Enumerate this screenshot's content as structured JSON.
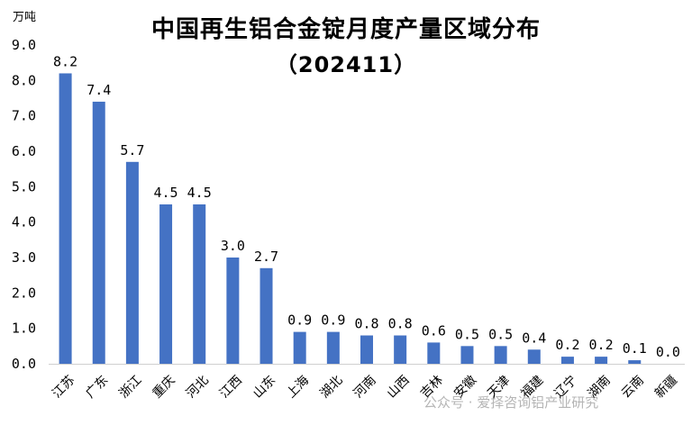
{
  "chart_data": {
    "type": "bar",
    "title": "中国再生铝合金锭月度产量区域分布",
    "subtitle": "（202411）",
    "ylabel": "万吨",
    "ylim": [
      0,
      9
    ],
    "yticks": [
      "0.0",
      "1.0",
      "2.0",
      "3.0",
      "4.0",
      "5.0",
      "6.0",
      "7.0",
      "8.0",
      "9.0"
    ],
    "grid": false,
    "categories": [
      "江苏",
      "广东",
      "浙江",
      "重庆",
      "河北",
      "江西",
      "山东",
      "上海",
      "湖北",
      "河南",
      "山西",
      "吉林",
      "安徽",
      "天津",
      "福建",
      "辽宁",
      "湖南",
      "云南",
      "新疆"
    ],
    "values": [
      8.2,
      7.4,
      5.7,
      4.5,
      4.5,
      3.0,
      2.7,
      0.9,
      0.9,
      0.8,
      0.8,
      0.6,
      0.5,
      0.5,
      0.4,
      0.2,
      0.2,
      0.1,
      0.0
    ],
    "value_labels": [
      "8.2",
      "7.4",
      "5.7",
      "4.5",
      "4.5",
      "3.0",
      "2.7",
      "0.9",
      "0.9",
      "0.8",
      "0.8",
      "0.6",
      "0.5",
      "0.5",
      "0.4",
      "0.2",
      "0.2",
      "0.1",
      "0.0"
    ],
    "bar_color": "#4472C4"
  },
  "watermark": "公众号 · 爱择咨询铝产业研究"
}
